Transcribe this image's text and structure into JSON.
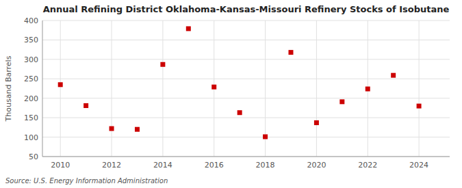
{
  "chart_data": {
    "type": "scatter",
    "title": "Annual Refining District Oklahoma-Kansas-Missouri Refinery Stocks of Isobutane",
    "ylabel": "Thousand Barrels",
    "source": "Source: U.S. Energy Information Administration",
    "x": [
      2010,
      2011,
      2012,
      2013,
      2014,
      2015,
      2016,
      2017,
      2018,
      2019,
      2020,
      2021,
      2022,
      2023,
      2024
    ],
    "values": [
      235,
      181,
      122,
      120,
      287,
      379,
      229,
      163,
      101,
      318,
      137,
      191,
      224,
      259,
      180
    ],
    "color": "#cc0000",
    "marker": "square",
    "xlim": [
      2009.3,
      2025.2
    ],
    "ylim": [
      50,
      400
    ],
    "xticks": [
      2010,
      2012,
      2014,
      2016,
      2018,
      2020,
      2022,
      2024
    ],
    "yticks": [
      50,
      100,
      150,
      200,
      250,
      300,
      350,
      400
    ],
    "grid": true
  }
}
